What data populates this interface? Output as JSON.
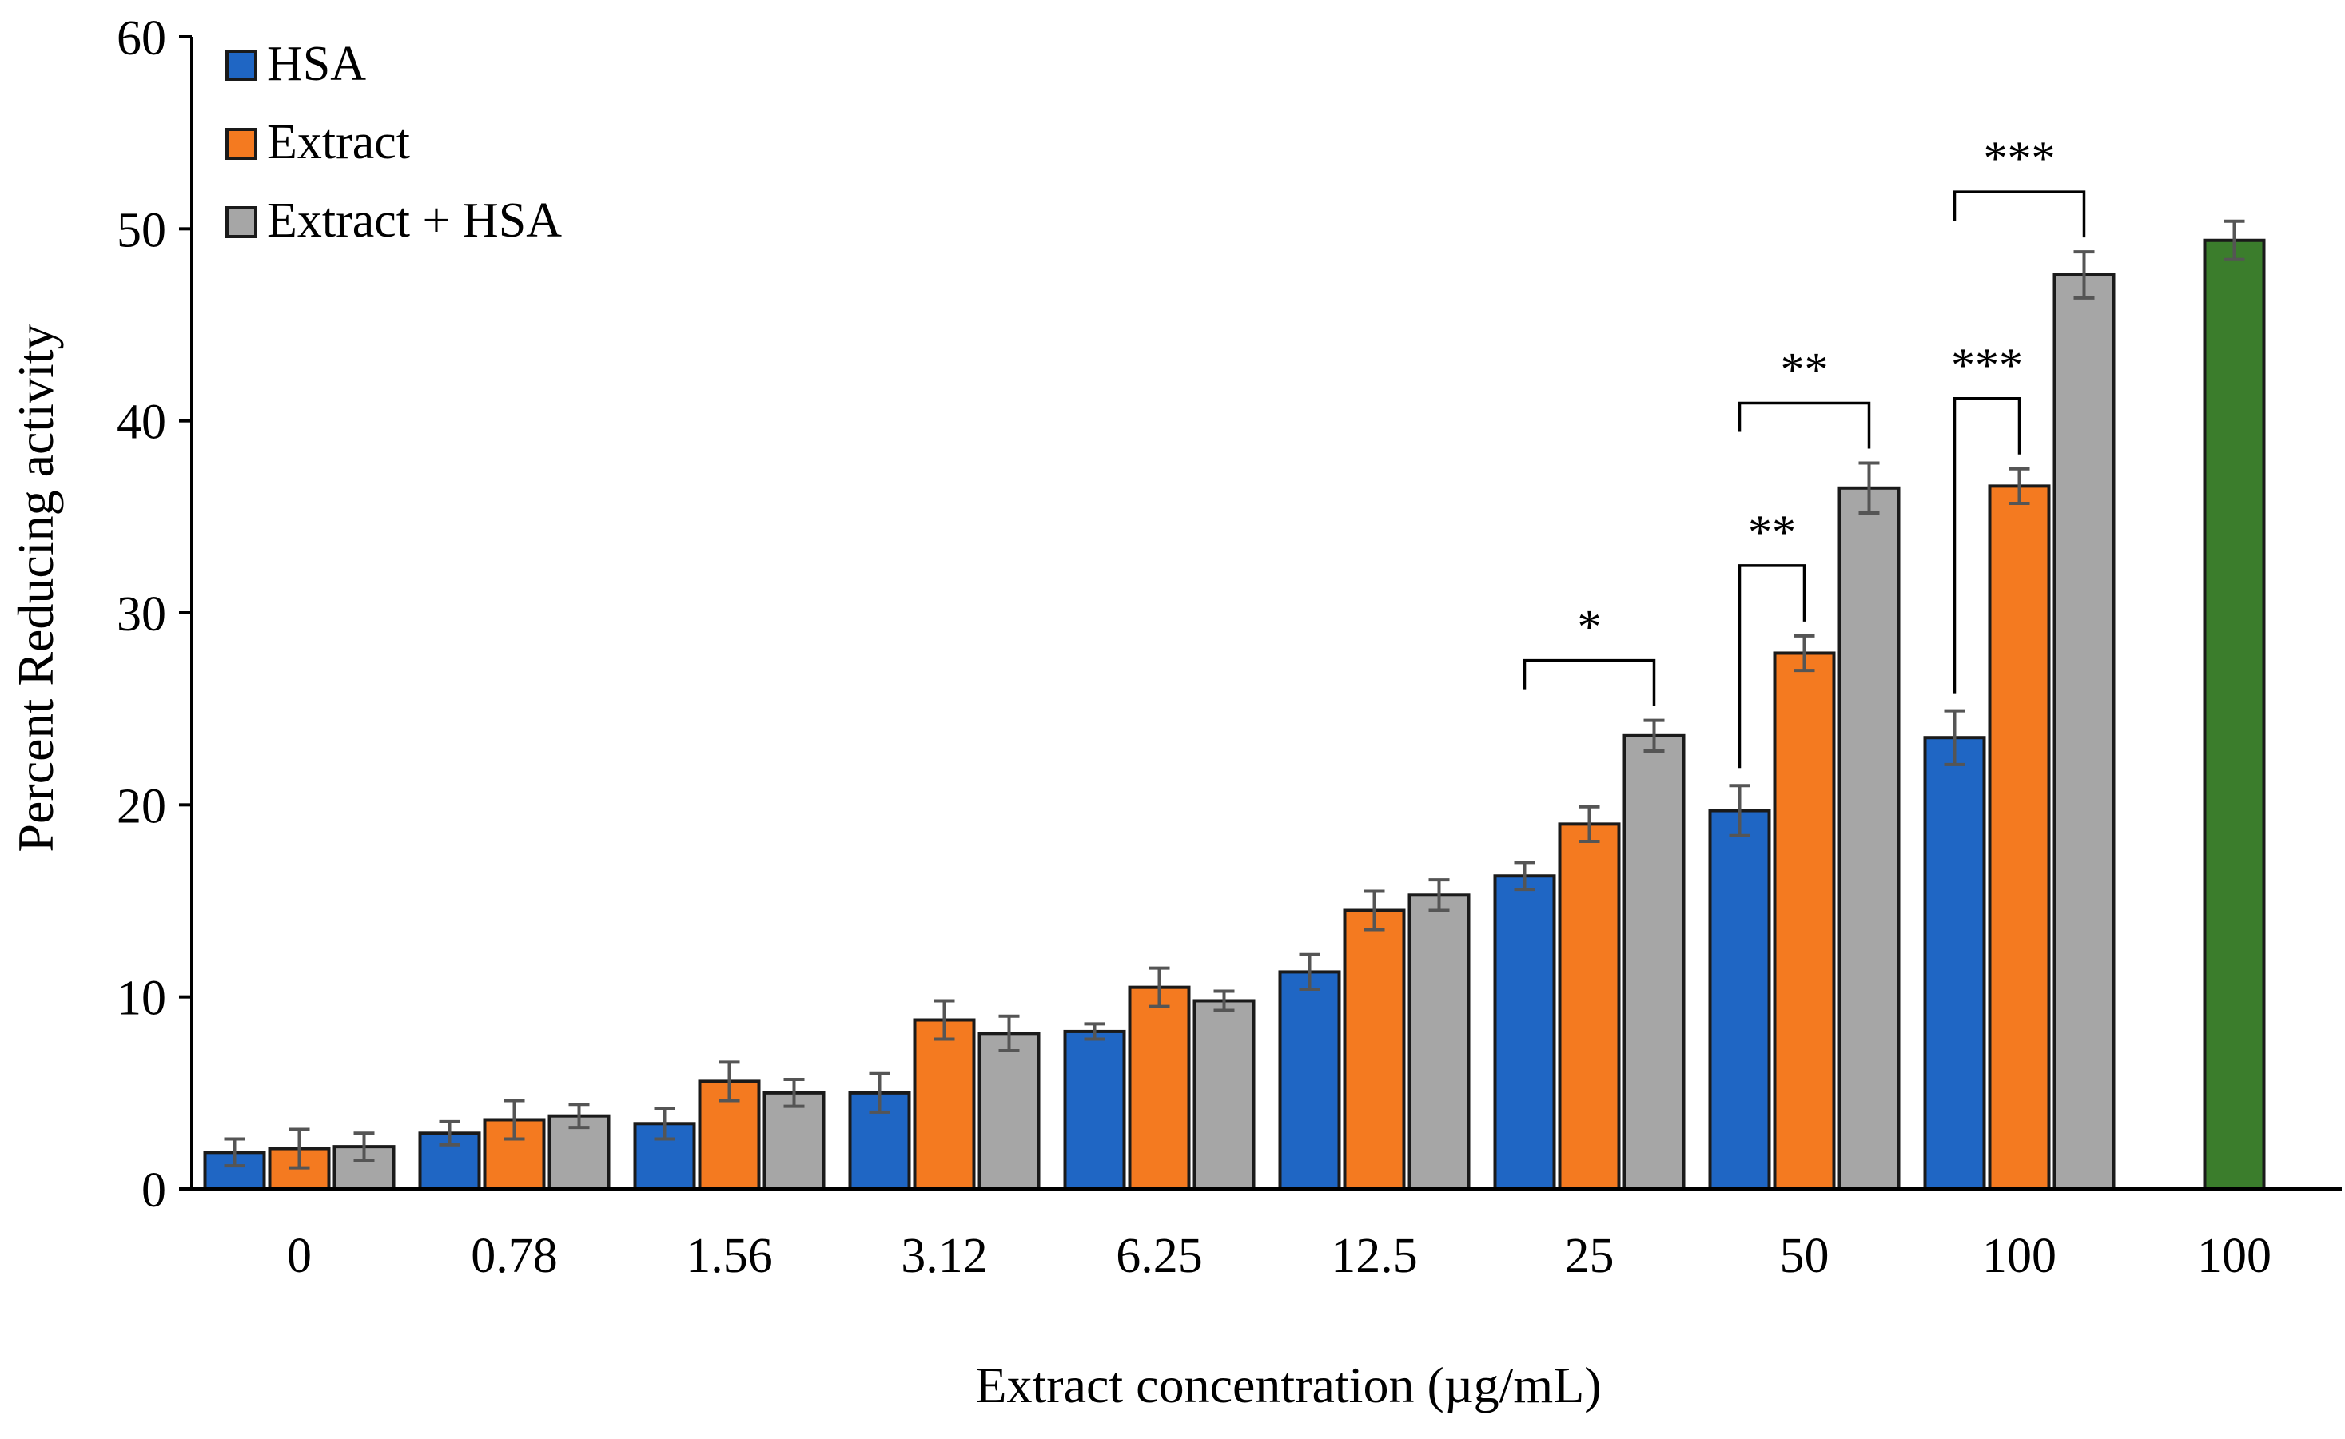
{
  "chart_data": {
    "type": "bar",
    "categories": [
      "0",
      "0.78",
      "1.56",
      "3.12",
      "6.25",
      "12.5",
      "25",
      "50",
      "100",
      "100"
    ],
    "series": [
      {
        "name": "HSA",
        "color": "#1f66c4",
        "values": [
          1.9,
          2.9,
          3.4,
          5.0,
          8.2,
          11.3,
          16.3,
          19.7,
          23.5,
          null
        ],
        "errors": [
          0.7,
          0.6,
          0.8,
          1.0,
          0.4,
          0.9,
          0.7,
          1.3,
          1.4,
          null
        ]
      },
      {
        "name": "Extract",
        "color": "#f47a20",
        "values": [
          2.1,
          3.6,
          5.6,
          8.8,
          10.5,
          14.5,
          19.0,
          27.9,
          36.6,
          null
        ],
        "errors": [
          1.0,
          1.0,
          1.0,
          1.0,
          1.0,
          1.0,
          0.9,
          0.9,
          0.9,
          null
        ]
      },
      {
        "name": "Extract + HSA",
        "color": "#a6a6a6",
        "values": [
          2.2,
          3.8,
          5.0,
          8.1,
          9.8,
          15.3,
          23.6,
          36.5,
          47.6,
          null
        ],
        "errors": [
          0.7,
          0.6,
          0.7,
          0.9,
          0.5,
          0.8,
          0.8,
          1.3,
          1.2,
          null
        ]
      }
    ],
    "standard": {
      "category_index": 9,
      "value": 49.4,
      "error": 1.0,
      "color": "#3b7d2c"
    },
    "significance": [
      {
        "category_index": 6,
        "from": 0,
        "to": 2,
        "label": "*",
        "kind": "over"
      },
      {
        "category_index": 7,
        "from": 0,
        "to": 1,
        "label": "**",
        "kind": "side"
      },
      {
        "category_index": 7,
        "from": 0,
        "to": 2,
        "label": "**",
        "kind": "over"
      },
      {
        "category_index": 8,
        "from": 0,
        "to": 1,
        "label": "***",
        "kind": "side"
      },
      {
        "category_index": 8,
        "from": 0,
        "to": 2,
        "label": "***",
        "kind": "over"
      }
    ],
    "xlabel": "Extract concentration (µg/mL)",
    "ylabel": "Percent Reducing activity",
    "ylim": [
      0,
      60
    ],
    "yticks": [
      0,
      10,
      20,
      30,
      40,
      50,
      60
    ],
    "legend_position": "top-left",
    "grid": false
  }
}
